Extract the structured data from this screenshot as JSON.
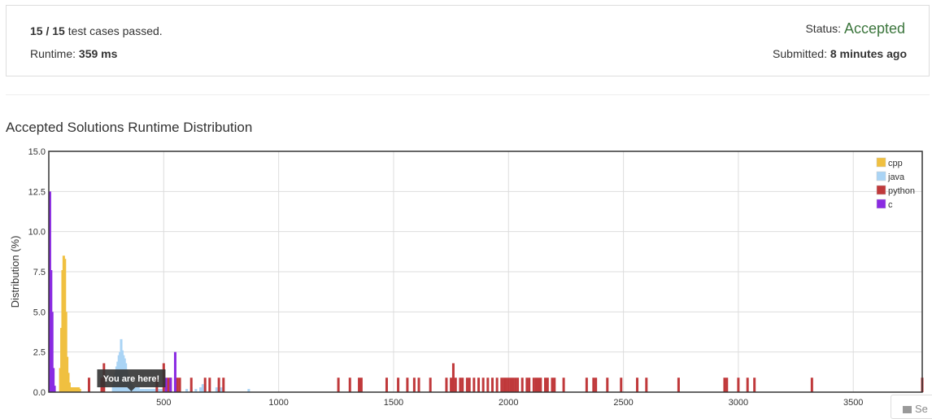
{
  "summary": {
    "cases_passed": "15 / 15",
    "cases_text": " test cases passed.",
    "runtime_label": "Runtime: ",
    "runtime_value": "359 ms",
    "status_label": "Status: ",
    "status_value": "Accepted",
    "submitted_label": "Submitted: ",
    "submitted_value": "8 minutes ago"
  },
  "section_title": "Accepted Solutions Runtime Distribution",
  "feedback": {
    "label": "Se",
    "icon": "envelope-icon"
  },
  "chart_data": {
    "type": "bar",
    "ylabel": "Distribution (%)",
    "xlabel": "",
    "xlim": [
      0,
      3800
    ],
    "ylim": [
      0,
      15
    ],
    "x_ticks": [
      "500",
      "1000",
      "1500",
      "2000",
      "2500",
      "3000",
      "3500"
    ],
    "y_ticks": [
      "0.0",
      "2.5",
      "5.0",
      "7.5",
      "10.0",
      "12.5",
      "15.0"
    ],
    "grid": true,
    "legend_position": "top-right",
    "annotation": {
      "text": "You are here!",
      "x": 359
    },
    "series": [
      {
        "name": "cpp",
        "color": "#f0c040",
        "points": [
          [
            50,
            1.5
          ],
          [
            55,
            4
          ],
          [
            60,
            7.6
          ],
          [
            65,
            8.5
          ],
          [
            70,
            8.3
          ],
          [
            75,
            5
          ],
          [
            80,
            2.2
          ],
          [
            85,
            1.2
          ],
          [
            90,
            0.6
          ],
          [
            95,
            0.3
          ],
          [
            100,
            0.3
          ],
          [
            105,
            0.3
          ],
          [
            110,
            0.3
          ],
          [
            115,
            0.3
          ],
          [
            120,
            0.3
          ],
          [
            125,
            0.3
          ],
          [
            130,
            0.3
          ],
          [
            135,
            0.2
          ]
        ]
      },
      {
        "name": "java",
        "color": "#aad4f5",
        "points": [
          [
            280,
            0.5
          ],
          [
            285,
            0.8
          ],
          [
            290,
            1.2
          ],
          [
            295,
            1.6
          ],
          [
            300,
            1.9
          ],
          [
            305,
            2.3
          ],
          [
            310,
            2.5
          ],
          [
            315,
            3.3
          ],
          [
            320,
            2.6
          ],
          [
            325,
            2.3
          ],
          [
            330,
            2.1
          ],
          [
            335,
            1.8
          ],
          [
            340,
            1.4
          ],
          [
            345,
            1.1
          ],
          [
            350,
            0.8
          ],
          [
            355,
            0.6
          ],
          [
            360,
            0.5
          ],
          [
            365,
            0.4
          ],
          [
            370,
            0.3
          ],
          [
            380,
            0.3
          ],
          [
            390,
            0.3
          ],
          [
            400,
            0.2
          ],
          [
            410,
            0.2
          ],
          [
            420,
            0.2
          ],
          [
            430,
            0.2
          ],
          [
            440,
            0.2
          ],
          [
            450,
            0.2
          ],
          [
            460,
            0.2
          ],
          [
            470,
            0.2
          ],
          [
            480,
            0.2
          ],
          [
            490,
            0.2
          ],
          [
            600,
            0.2
          ],
          [
            620,
            0.3
          ],
          [
            640,
            0.2
          ],
          [
            660,
            0.3
          ],
          [
            670,
            0.5
          ],
          [
            730,
            0.3
          ],
          [
            750,
            0.3
          ],
          [
            870,
            0.2
          ]
        ]
      },
      {
        "name": "python",
        "color": "#c0393b",
        "points": [
          [
            175,
            0.9
          ],
          [
            230,
            0.9
          ],
          [
            240,
            1.8
          ],
          [
            470,
            0.9
          ],
          [
            500,
            1.8
          ],
          [
            520,
            0.9
          ],
          [
            530,
            0.9
          ],
          [
            550,
            0.9
          ],
          [
            560,
            0.9
          ],
          [
            570,
            0.9
          ],
          [
            620,
            0.9
          ],
          [
            680,
            0.9
          ],
          [
            700,
            0.9
          ],
          [
            740,
            0.9
          ],
          [
            760,
            0.9
          ],
          [
            1260,
            0.9
          ],
          [
            1310,
            0.9
          ],
          [
            1350,
            0.9
          ],
          [
            1360,
            0.9
          ],
          [
            1470,
            0.9
          ],
          [
            1520,
            0.9
          ],
          [
            1560,
            0.9
          ],
          [
            1590,
            0.9
          ],
          [
            1610,
            0.9
          ],
          [
            1660,
            0.9
          ],
          [
            1730,
            0.9
          ],
          [
            1750,
            0.9
          ],
          [
            1760,
            1.8
          ],
          [
            1770,
            0.9
          ],
          [
            1790,
            0.9
          ],
          [
            1800,
            0.9
          ],
          [
            1820,
            0.9
          ],
          [
            1830,
            0.9
          ],
          [
            1850,
            0.9
          ],
          [
            1870,
            0.9
          ],
          [
            1890,
            0.9
          ],
          [
            1910,
            0.9
          ],
          [
            1930,
            0.9
          ],
          [
            1950,
            0.9
          ],
          [
            1970,
            0.9
          ],
          [
            1980,
            0.9
          ],
          [
            1990,
            0.9
          ],
          [
            2000,
            0.9
          ],
          [
            2010,
            0.9
          ],
          [
            2020,
            0.9
          ],
          [
            2030,
            0.9
          ],
          [
            2040,
            0.9
          ],
          [
            2060,
            0.9
          ],
          [
            2080,
            0.9
          ],
          [
            2090,
            0.9
          ],
          [
            2110,
            0.9
          ],
          [
            2120,
            0.9
          ],
          [
            2130,
            0.9
          ],
          [
            2140,
            0.9
          ],
          [
            2160,
            0.9
          ],
          [
            2170,
            0.9
          ],
          [
            2190,
            0.9
          ],
          [
            2200,
            0.9
          ],
          [
            2240,
            0.9
          ],
          [
            2340,
            0.9
          ],
          [
            2370,
            0.9
          ],
          [
            2380,
            0.9
          ],
          [
            2430,
            0.9
          ],
          [
            2490,
            0.9
          ],
          [
            2560,
            0.9
          ],
          [
            2600,
            0.9
          ],
          [
            2740,
            0.9
          ],
          [
            2940,
            0.9
          ],
          [
            2950,
            0.9
          ],
          [
            3000,
            0.9
          ],
          [
            3040,
            0.9
          ],
          [
            3070,
            0.9
          ],
          [
            3320,
            0.9
          ],
          [
            3800,
            0.9
          ]
        ]
      },
      {
        "name": "c",
        "color": "#8a2be2",
        "points": [
          [
            5,
            12.5
          ],
          [
            10,
            7.6
          ],
          [
            15,
            5
          ],
          [
            20,
            1.5
          ],
          [
            25,
            0.4
          ],
          [
            510,
            0.9
          ],
          [
            530,
            0.9
          ],
          [
            550,
            2.5
          ]
        ]
      }
    ]
  }
}
